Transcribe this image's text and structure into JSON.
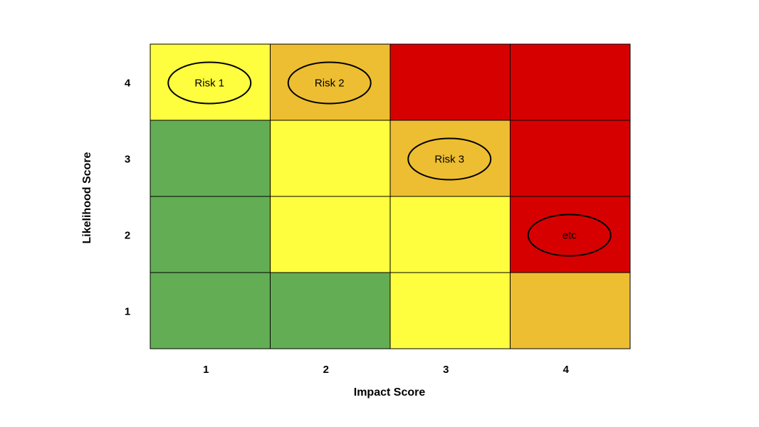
{
  "chart_data": {
    "type": "heatmap",
    "title": "",
    "xlabel": "Impact Score",
    "ylabel": "Likelihood Score",
    "x_categories": [
      "1",
      "2",
      "3",
      "4"
    ],
    "y_categories": [
      "1",
      "2",
      "3",
      "4"
    ],
    "colors": {
      "green": "#63AE55",
      "yellow": "#FEFE3F",
      "amber": "#EDBE31",
      "red": "#D70000",
      "grid": "#000000"
    },
    "cells": [
      [
        "green",
        "green",
        "yellow",
        "amber"
      ],
      [
        "green",
        "yellow",
        "yellow",
        "red"
      ],
      [
        "green",
        "yellow",
        "amber",
        "red"
      ],
      [
        "yellow",
        "amber",
        "red",
        "red"
      ]
    ],
    "risks": [
      {
        "label": "Risk 1",
        "impact": 1,
        "likelihood": 4
      },
      {
        "label": "Risk 2",
        "impact": 2,
        "likelihood": 4
      },
      {
        "label": "Risk 3",
        "impact": 3,
        "likelihood": 3
      },
      {
        "label": "etc",
        "impact": 4,
        "likelihood": 2
      }
    ]
  }
}
